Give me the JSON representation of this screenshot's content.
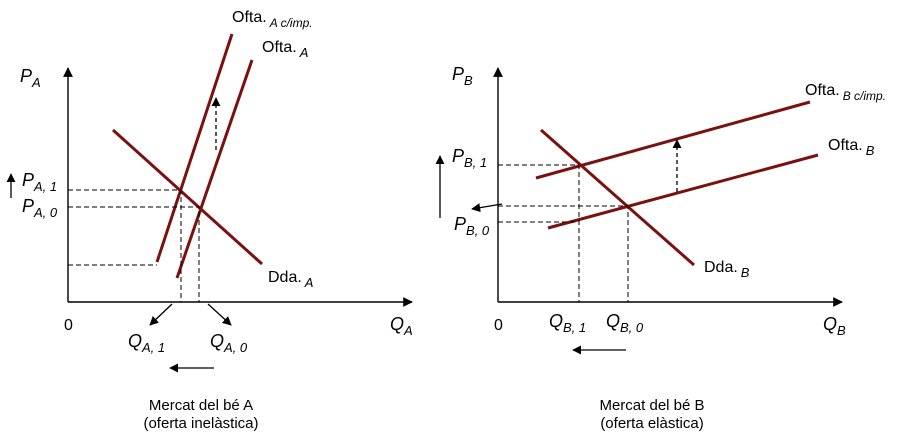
{
  "panel_a": {
    "y_axis": "P",
    "y_axis_sub": "A",
    "x_axis": "Q",
    "x_axis_sub": "A",
    "origin": "0",
    "supply_taxed": "Ofta.",
    "supply_taxed_sub": "A c/imp.",
    "supply": "Ofta.",
    "supply_sub": "A",
    "demand": "Dda.",
    "demand_sub": "A",
    "price_1": "P",
    "price_1_sub": "A, 1",
    "price_0": "P",
    "price_0_sub": "A, 0",
    "qty_1": "Q",
    "qty_1_sub": "A, 1",
    "qty_0": "Q",
    "qty_0_sub": "A, 0",
    "caption_line1": "Mercat del bé A",
    "caption_line2": "(oferta inelàstica)"
  },
  "panel_b": {
    "y_axis": "P",
    "y_axis_sub": "B",
    "x_axis": "Q",
    "x_axis_sub": "B",
    "origin": "0",
    "supply_taxed": "Ofta.",
    "supply_taxed_sub": "B c/imp.",
    "supply": "Ofta.",
    "supply_sub": "B",
    "demand": "Dda.",
    "demand_sub": "B",
    "price_1": "P",
    "price_1_sub": "B, 1",
    "price_0": "P",
    "price_0_sub": "B, 0",
    "qty_1": "Q",
    "qty_1_sub": "B, 1",
    "qty_0": "Q",
    "qty_0_sub": "B, 0",
    "caption_line1": "Mercat del bé B",
    "caption_line2": "(oferta elàstica)"
  },
  "colors": {
    "curve": "#7a1010",
    "axis": "#000000"
  }
}
